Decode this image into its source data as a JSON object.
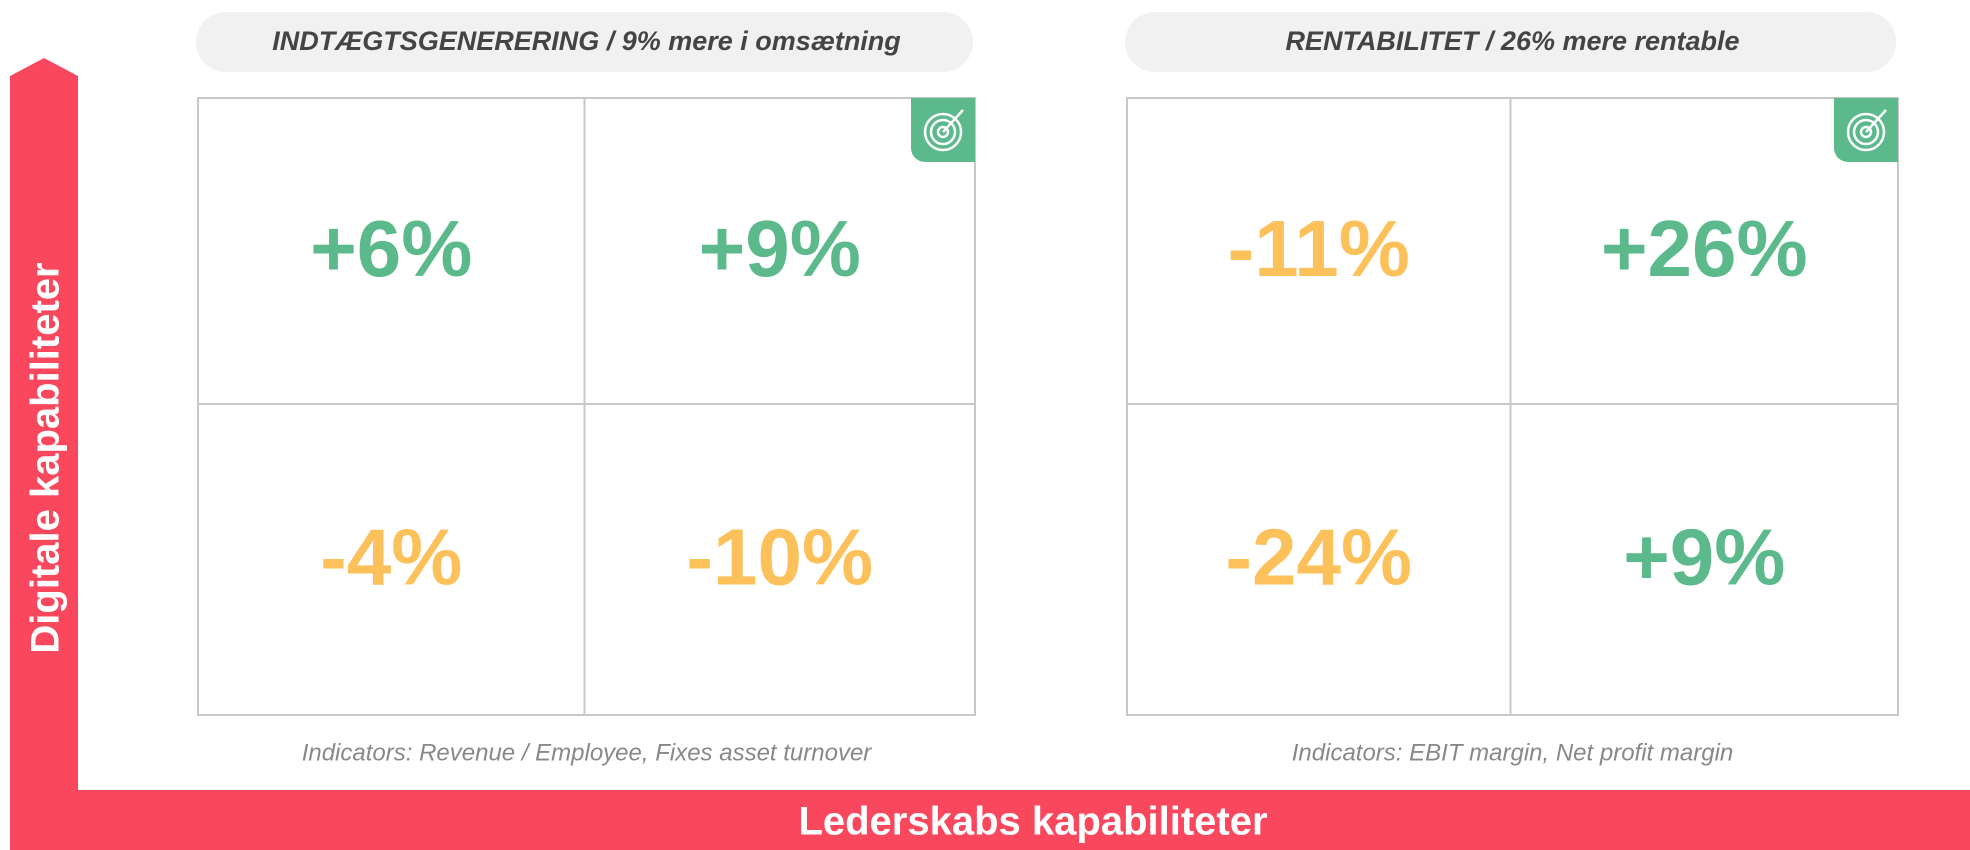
{
  "axes": {
    "y_label": "Digitale kapabiliteter",
    "x_label": "Lederskabs kapabiliteter"
  },
  "panels": [
    {
      "title": "INDTÆGTSGENERERING / 9% mere i omsætning",
      "cells": [
        "+6%",
        "+9%",
        "-4%",
        "-10%"
      ],
      "indicators": "Indicators: Revenue / Employee, Fixes asset turnover"
    },
    {
      "title": "RENTABILITET / 26% mere rentable",
      "cells": [
        "-11%",
        "+26%",
        "-24%",
        "+9%"
      ],
      "indicators": "Indicators: EBIT margin, Net profit margin"
    }
  ]
}
